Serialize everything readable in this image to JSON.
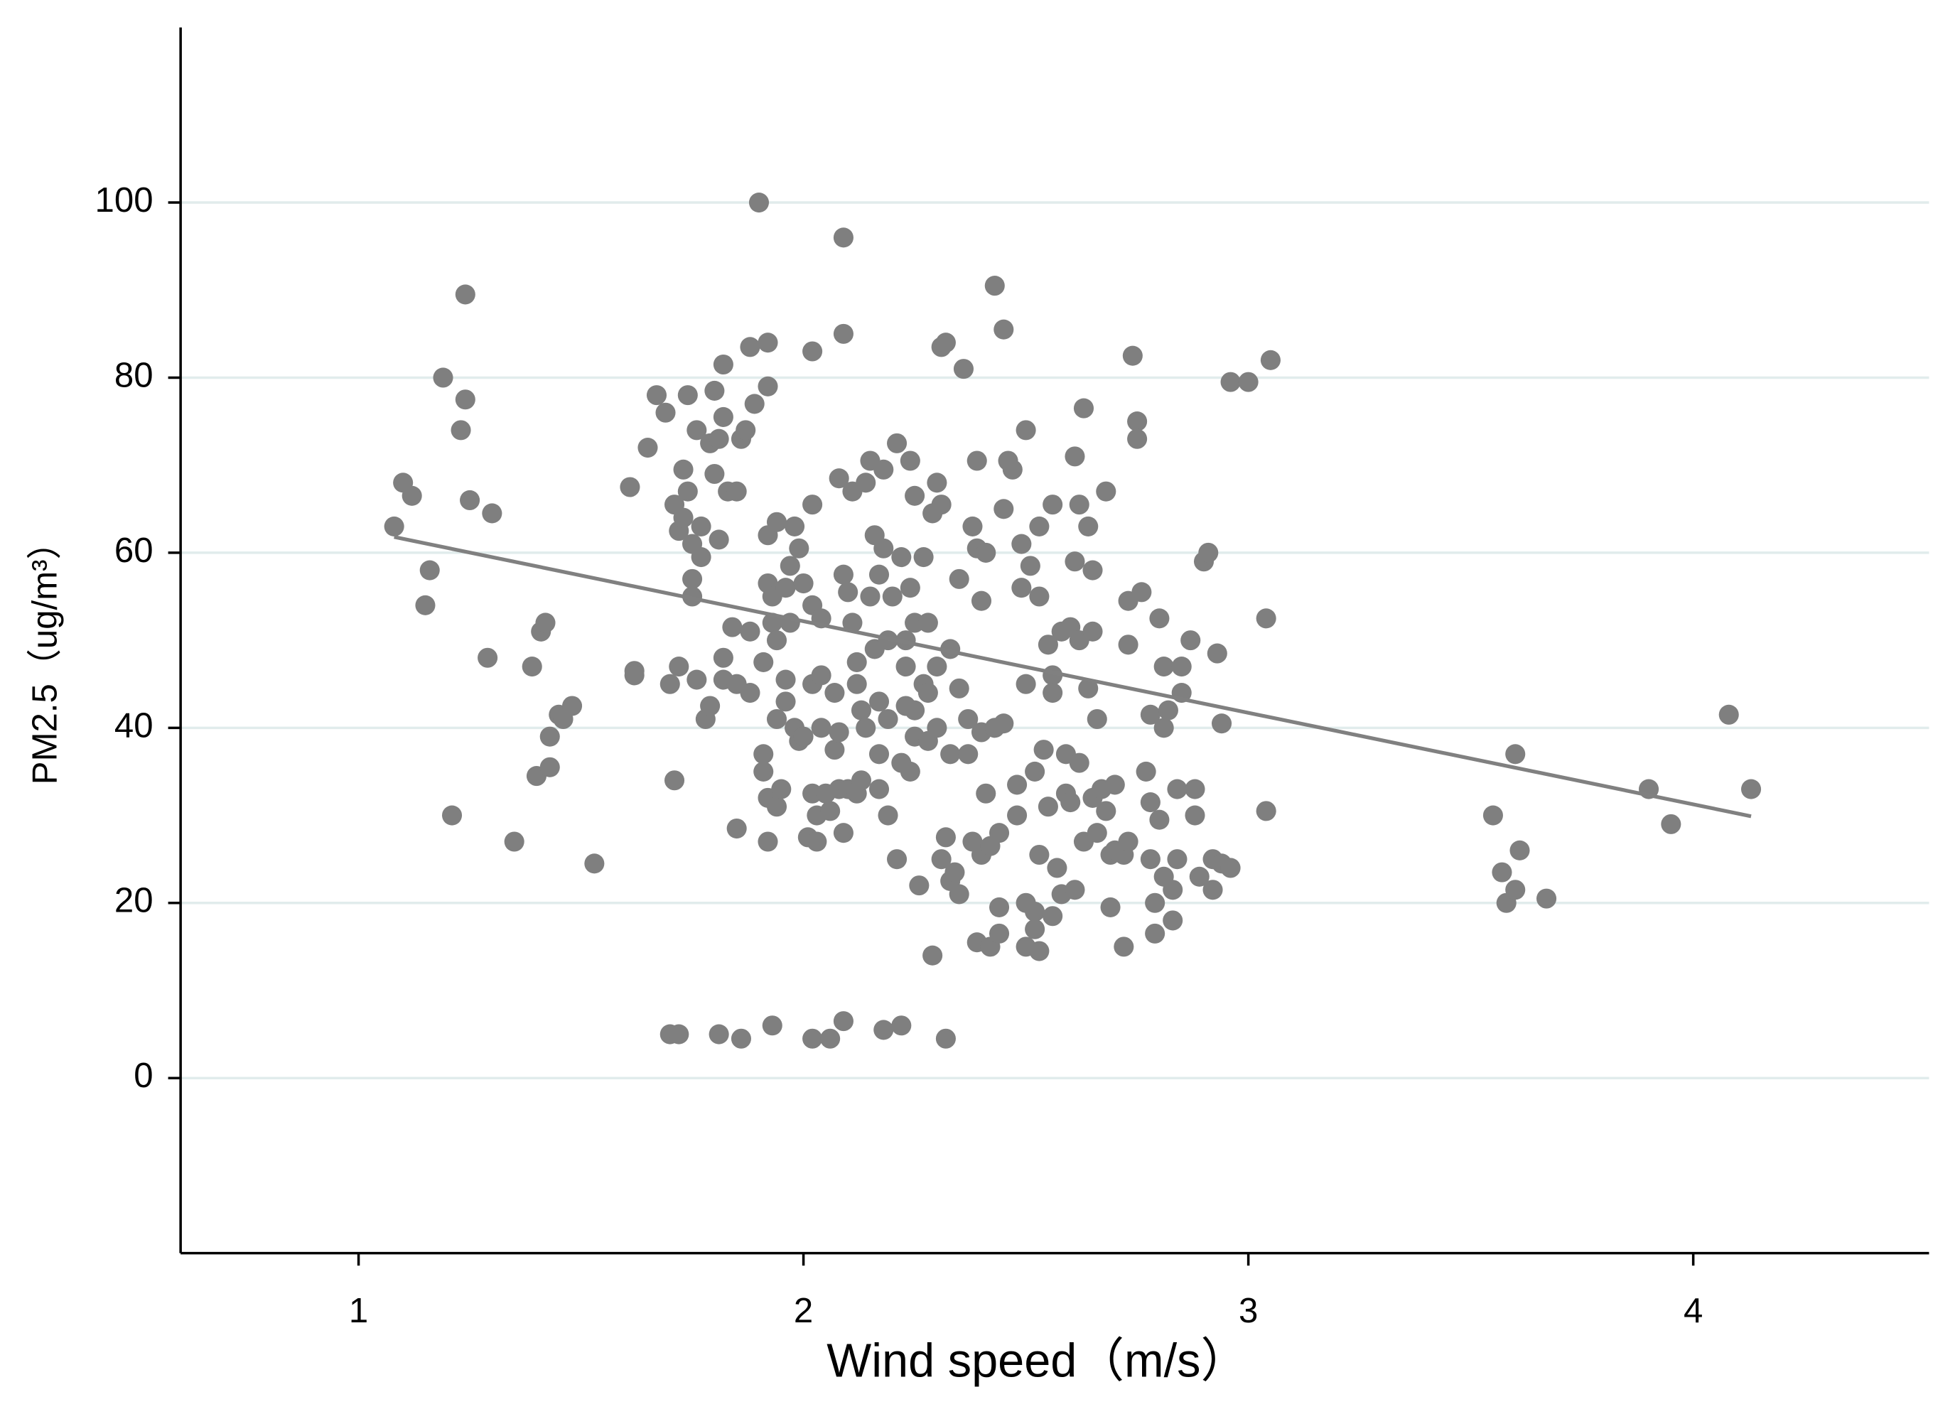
{
  "chart_data": {
    "type": "scatter",
    "x_label": "Wind speed（m/s）",
    "y_label": "PM2.5（ug/m³）",
    "xlim": [
      0.6,
      4.53
    ],
    "ylim": [
      -20,
      120
    ],
    "xticks": [
      1,
      2,
      3,
      4
    ],
    "yticks": [
      0,
      20,
      40,
      60,
      80,
      100
    ],
    "grid": true,
    "color": "#7f7f7f",
    "fit_color": "#808080",
    "x": [
      1.08,
      1.1,
      1.12,
      1.15,
      1.16,
      1.19,
      1.21,
      1.23,
      1.24,
      1.24,
      1.25,
      1.29,
      1.3,
      1.35,
      1.39,
      1.4,
      1.41,
      1.42,
      1.43,
      1.43,
      1.45,
      1.46,
      1.48,
      1.53,
      1.61,
      1.62,
      1.62,
      1.65,
      1.67,
      1.69,
      1.7,
      1.7,
      1.71,
      1.71,
      1.72,
      1.72,
      1.72,
      1.73,
      1.73,
      1.74,
      1.74,
      1.75,
      1.75,
      1.75,
      1.76,
      1.76,
      1.77,
      1.77,
      1.78,
      1.79,
      1.79,
      1.8,
      1.8,
      1.81,
      1.81,
      1.81,
      1.82,
      1.82,
      1.82,
      1.82,
      1.83,
      1.84,
      1.85,
      1.85,
      1.85,
      1.86,
      1.86,
      1.87,
      1.88,
      1.88,
      1.88,
      1.89,
      1.9,
      1.91,
      1.91,
      1.91,
      1.92,
      1.92,
      1.92,
      1.92,
      1.92,
      1.92,
      1.93,
      1.93,
      1.93,
      1.94,
      1.94,
      1.94,
      1.94,
      1.95,
      1.96,
      1.96,
      1.96,
      1.97,
      1.97,
      1.98,
      1.98,
      1.99,
      1.99,
      2.0,
      2.0,
      2.01,
      2.02,
      2.02,
      2.02,
      2.02,
      2.02,
      2.02,
      2.03,
      2.03,
      2.04,
      2.04,
      2.04,
      2.05,
      2.06,
      2.06,
      2.07,
      2.07,
      2.08,
      2.08,
      2.08,
      2.09,
      2.09,
      2.09,
      2.09,
      2.09,
      2.1,
      2.1,
      2.11,
      2.11,
      2.12,
      2.12,
      2.12,
      2.13,
      2.13,
      2.14,
      2.14,
      2.15,
      2.15,
      2.16,
      2.16,
      2.17,
      2.17,
      2.17,
      2.17,
      2.18,
      2.18,
      2.18,
      2.19,
      2.19,
      2.19,
      2.2,
      2.21,
      2.21,
      2.22,
      2.22,
      2.22,
      2.23,
      2.23,
      2.23,
      2.24,
      2.24,
      2.24,
      2.25,
      2.25,
      2.25,
      2.25,
      2.26,
      2.27,
      2.27,
      2.28,
      2.28,
      2.28,
      2.29,
      2.29,
      2.3,
      2.3,
      2.3,
      2.31,
      2.31,
      2.31,
      2.32,
      2.32,
      2.32,
      2.33,
      2.33,
      2.33,
      2.34,
      2.35,
      2.35,
      2.35,
      2.36,
      2.37,
      2.37,
      2.38,
      2.38,
      2.39,
      2.39,
      2.39,
      2.4,
      2.4,
      2.4,
      2.41,
      2.41,
      2.42,
      2.42,
      2.43,
      2.43,
      2.44,
      2.44,
      2.44,
      2.45,
      2.45,
      2.45,
      2.46,
      2.47,
      2.48,
      2.48,
      2.49,
      2.49,
      2.5,
      2.5,
      2.5,
      2.5,
      2.51,
      2.52,
      2.52,
      2.52,
      2.53,
      2.53,
      2.53,
      2.53,
      2.54,
      2.55,
      2.55,
      2.56,
      2.56,
      2.56,
      2.56,
      2.57,
      2.58,
      2.58,
      2.59,
      2.59,
      2.6,
      2.6,
      2.61,
      2.61,
      2.61,
      2.62,
      2.62,
      2.62,
      2.63,
      2.63,
      2.64,
      2.64,
      2.65,
      2.65,
      2.65,
      2.66,
      2.66,
      2.67,
      2.68,
      2.68,
      2.69,
      2.69,
      2.7,
      2.7,
      2.72,
      2.72,
      2.73,
      2.73,
      2.73,
      2.74,
      2.75,
      2.75,
      2.76,
      2.77,
      2.78,
      2.78,
      2.78,
      2.79,
      2.79,
      2.8,
      2.8,
      2.81,
      2.81,
      2.81,
      2.82,
      2.83,
      2.83,
      2.84,
      2.84,
      2.85,
      2.85,
      2.87,
      2.88,
      2.88,
      2.89,
      2.9,
      2.91,
      2.92,
      2.92,
      2.93,
      2.94,
      2.94,
      2.96,
      2.96,
      3.0,
      3.04,
      3.04,
      3.05,
      3.55,
      3.57,
      3.58,
      3.6,
      3.6,
      3.61,
      3.67,
      3.9,
      3.95,
      4.08,
      4.13
    ],
    "y": [
      63,
      68,
      66.5,
      54,
      58,
      80,
      30,
      74,
      89.5,
      77.5,
      66,
      48,
      64.5,
      27,
      47,
      34.5,
      51,
      52,
      39,
      35.5,
      41.5,
      41,
      42.5,
      24.5,
      67.5,
      46.5,
      46,
      72,
      78,
      76,
      45,
      5,
      65.5,
      34,
      62.5,
      47,
      5,
      64,
      69.5,
      78,
      67,
      57,
      55,
      61,
      74,
      45.5,
      59.5,
      63,
      41,
      72.5,
      42.5,
      78.5,
      69,
      61.5,
      73,
      5,
      75.5,
      48,
      45.5,
      81.5,
      67,
      51.5,
      67,
      28.5,
      45,
      73,
      4.5,
      74,
      83.5,
      51,
      44,
      77,
      100,
      37,
      35,
      47.5,
      84,
      62,
      56.5,
      79,
      32,
      27,
      6,
      52,
      55,
      63.5,
      50,
      41,
      31,
      33,
      56,
      45.5,
      43,
      58.5,
      52,
      63,
      40,
      60.5,
      38.5,
      56.5,
      39,
      27.5,
      83,
      65.5,
      54,
      45,
      32.5,
      4.5,
      30,
      27,
      46,
      40,
      52.5,
      32.5,
      30.5,
      4.5,
      44,
      37.5,
      68.5,
      39.5,
      33,
      85,
      96,
      57.5,
      6.5,
      28,
      55.5,
      33,
      67,
      52,
      45,
      47.5,
      32.5,
      34,
      42,
      68,
      40,
      70.5,
      55,
      62,
      49,
      57.5,
      43,
      37,
      33,
      69.5,
      60.5,
      5.5,
      50,
      41,
      30,
      55,
      72.5,
      25,
      59.5,
      36,
      6,
      50,
      47,
      42.5,
      70.5,
      56,
      35,
      66.5,
      52,
      42,
      39,
      22,
      59.5,
      45,
      52,
      44,
      38.5,
      64.5,
      14,
      68,
      47,
      40,
      83.5,
      65.5,
      25,
      4.5,
      84,
      27.5,
      49,
      37,
      22.5,
      23.5,
      57,
      44.5,
      21,
      81,
      41,
      37,
      63,
      27,
      70.5,
      60.5,
      15.5,
      54.5,
      39.5,
      25.5,
      60,
      32.5,
      15,
      26.5,
      90.5,
      40,
      16.5,
      28,
      19.5,
      85.5,
      65,
      40.5,
      70.5,
      69.5,
      33.5,
      30,
      61,
      56,
      74,
      45,
      20,
      15,
      58.5,
      35,
      19,
      17,
      63,
      55,
      25.5,
      14.5,
      37.5,
      49.5,
      31,
      65.5,
      46,
      44,
      18.5,
      24,
      51,
      21,
      37,
      32.5,
      51.5,
      31.5,
      71,
      59,
      21.5,
      65.5,
      50,
      36,
      76.5,
      27,
      63,
      44.5,
      58,
      51,
      32,
      41,
      28,
      33,
      67,
      30.5,
      25.5,
      19.5,
      26,
      33.5,
      25.5,
      15,
      49.5,
      54.5,
      27,
      82.5,
      75,
      73,
      55.5,
      35,
      31.5,
      25,
      41.5,
      20,
      16.5,
      52.5,
      29.5,
      47,
      40,
      23,
      42,
      21.5,
      18,
      25,
      33,
      44,
      47,
      50,
      33,
      30,
      23,
      59,
      60,
      21.5,
      25,
      48.5,
      40.5,
      24.5,
      24,
      79.5,
      79.5,
      52.5,
      30.5,
      82,
      30,
      23.5,
      20,
      37,
      21.5,
      26,
      20.5,
      33,
      29,
      41.5,
      33
    ],
    "fit": {
      "x": [
        1.08,
        4.13
      ],
      "y": [
        61.8,
        29.9
      ]
    }
  }
}
